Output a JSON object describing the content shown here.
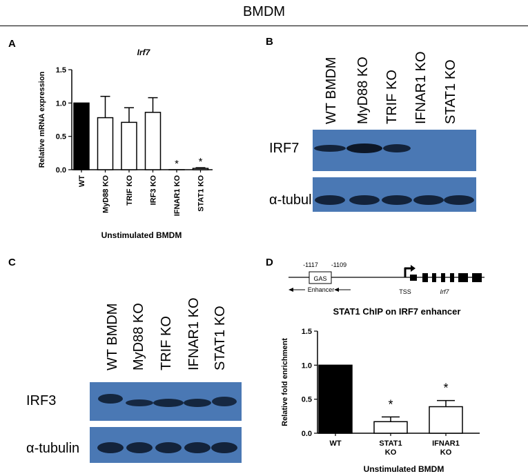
{
  "figure_title": "BMDM",
  "panels": {
    "A": {
      "label": "A",
      "chart_data": {
        "type": "bar",
        "title": "Irf7",
        "ylabel": "Relative mRNA expression",
        "xlabel": "Unstimulated BMDM",
        "categories": [
          "WT",
          "MyD88 KO",
          "TRIF KO",
          "IRF3 KO",
          "IFNAR1 KO",
          "STAT1 KO"
        ],
        "values": [
          1.0,
          0.78,
          0.71,
          0.86,
          0.0,
          0.02
        ],
        "errors": [
          0,
          0.32,
          0.22,
          0.22,
          0,
          0.01
        ],
        "fills": [
          "#000000",
          "#ffffff",
          "#ffffff",
          "#ffffff",
          "#ffffff",
          "#ffffff"
        ],
        "significance": [
          "",
          "",
          "",
          "",
          "*",
          "*"
        ],
        "ylim": [
          0,
          1.5
        ],
        "yticks": [
          "0.0",
          "0.5",
          "1.0",
          "1.5"
        ]
      }
    },
    "B": {
      "label": "B",
      "lanes": [
        "WT BMDM",
        "MyD88 KO",
        "TRIF KO",
        "IFNAR1 KO",
        "STAT1 KO"
      ],
      "blots": [
        "IRF7",
        "α-tubulin"
      ]
    },
    "C": {
      "label": "C",
      "lanes": [
        "WT BMDM",
        "MyD88 KO",
        "TRIF KO",
        "IFNAR1 KO",
        "STAT1 KO"
      ],
      "blots": [
        "IRF3",
        "α-tubulin"
      ]
    },
    "D": {
      "label": "D",
      "schematic": {
        "pos1": "-1117",
        "pos2": "-1109",
        "gas": "GAS",
        "enhancer": "Enhancer",
        "tss": "TSS",
        "gene": "Irf7"
      },
      "chart_data": {
        "type": "bar",
        "title": "STAT1 ChIP on IRF7 enhancer",
        "ylabel": "Relative fold enrichment",
        "xlabel": "Unstimulated BMDM",
        "categories": [
          "WT",
          "STAT1 KO",
          "IFNAR1 KO"
        ],
        "category_lines": [
          [
            "WT"
          ],
          [
            "STAT1",
            "KO"
          ],
          [
            "IFNAR1",
            "KO"
          ]
        ],
        "values": [
          1.0,
          0.17,
          0.39
        ],
        "errors": [
          0,
          0.07,
          0.09
        ],
        "fills": [
          "#000000",
          "#ffffff",
          "#ffffff"
        ],
        "significance": [
          "",
          "*",
          "*"
        ],
        "ylim": [
          0,
          1.5
        ],
        "yticks": [
          "0.0",
          "0.5",
          "1.0",
          "1.5"
        ]
      }
    }
  }
}
